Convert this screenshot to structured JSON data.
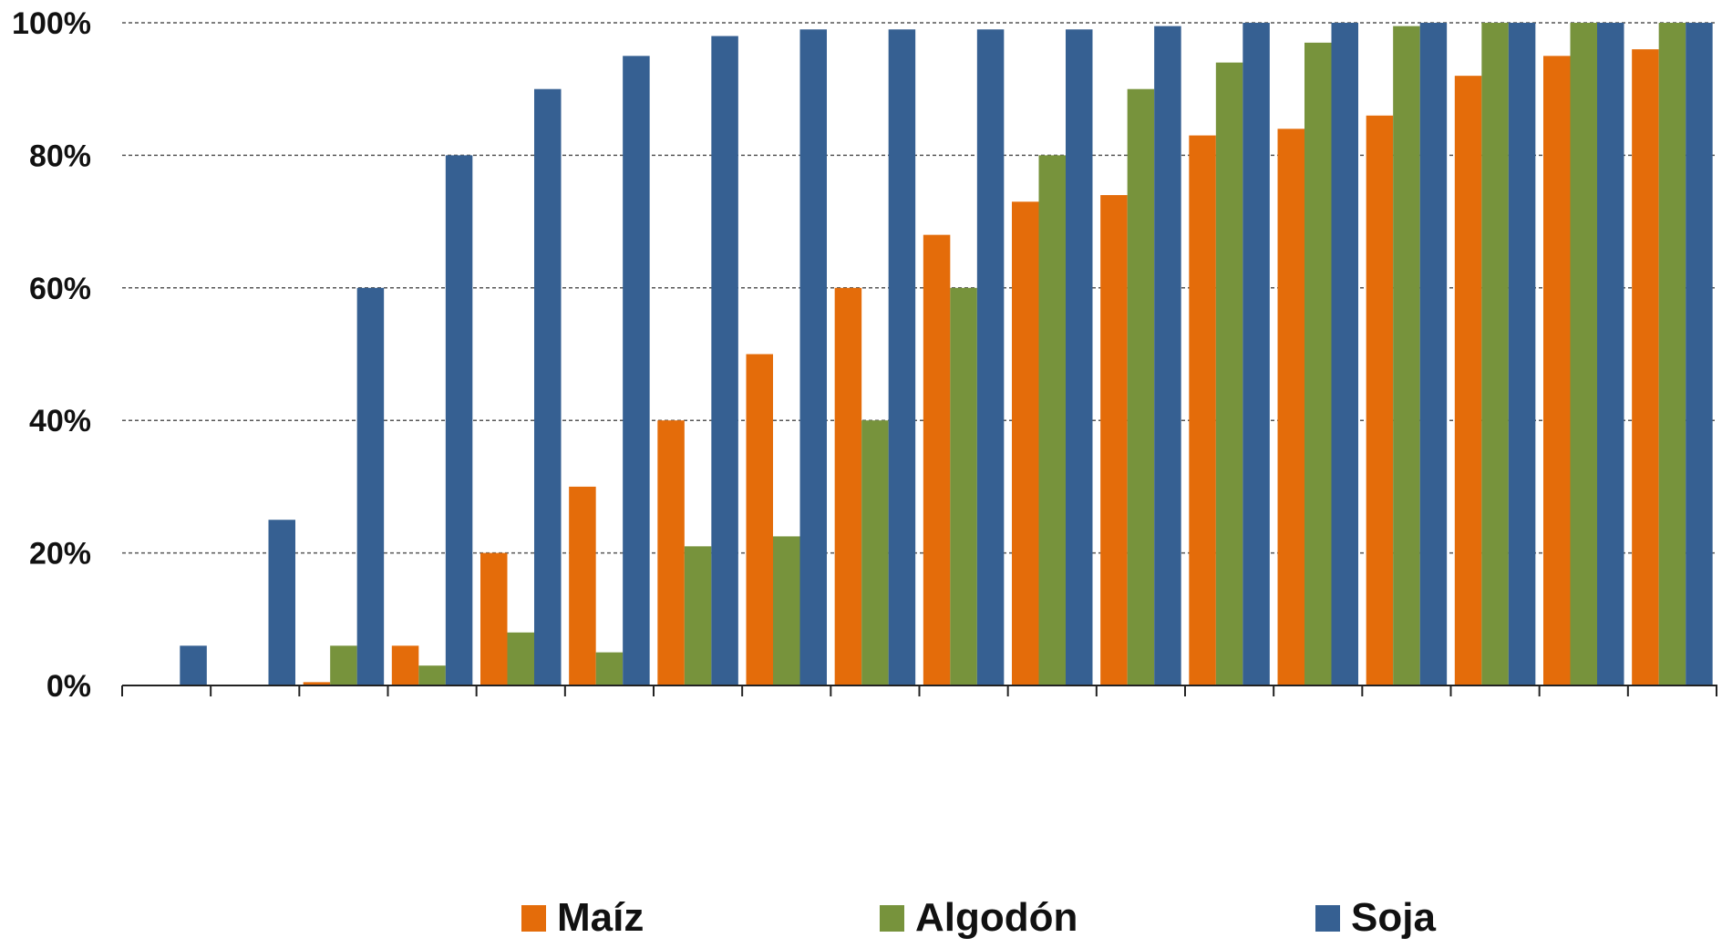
{
  "chart_data": {
    "type": "bar",
    "title": "",
    "xlabel": "",
    "ylabel": "",
    "ylim": [
      0,
      100
    ],
    "y_tick_labels": [
      "0%",
      "20%",
      "40%",
      "60%",
      "80%",
      "100%"
    ],
    "grid": true,
    "legend_position": "bottom",
    "categories": [
      "",
      "",
      "",
      "",
      "",
      "",
      "",
      "",
      "",
      "",
      "",
      "",
      "",
      "",
      "",
      "",
      "",
      ""
    ],
    "series": [
      {
        "name": "Maíz",
        "color": "#e46c0a",
        "values": [
          0,
          0,
          0.5,
          6,
          20,
          30,
          40,
          50,
          60,
          68,
          73,
          74,
          83,
          84,
          86,
          92,
          95,
          96
        ]
      },
      {
        "name": "Algodón",
        "color": "#77933c",
        "values": [
          0,
          0,
          6,
          3,
          8,
          5,
          21,
          22.5,
          40,
          60,
          80,
          90,
          94,
          97,
          99.5,
          100,
          100,
          100
        ]
      },
      {
        "name": "Soja",
        "color": "#366092",
        "values": [
          6,
          25,
          60,
          80,
          90,
          95,
          98,
          99,
          99,
          99,
          99,
          99.5,
          100,
          100,
          100,
          100,
          100,
          100
        ]
      }
    ]
  }
}
